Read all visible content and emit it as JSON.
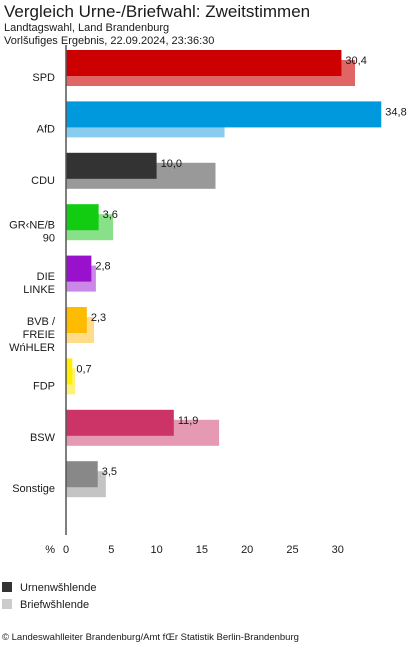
{
  "header": {
    "title": "Vergleich Urne-/Briefwahl: Zweitstimmen",
    "subtitle": "Landtagswahl, Land Brandenburg",
    "status": "Vorlšufiges Ergebnis, 22.09.2024, 23:36:30"
  },
  "chart_data": {
    "type": "bar",
    "orientation": "horizontal",
    "categories": [
      "SPD",
      "AfD",
      "CDU",
      "GR‹NE/B 90",
      "DIE LINKE",
      "BVB / FREIE WńHLER",
      "FDP",
      "BSW",
      "Sonstige"
    ],
    "series": [
      {
        "name": "Urnenwšhlende",
        "values": [
          30.4,
          34.8,
          10.0,
          3.6,
          2.8,
          2.3,
          0.7,
          11.9,
          3.5
        ]
      },
      {
        "name": "Briefwšhlende",
        "values": [
          31.9,
          17.5,
          16.5,
          5.2,
          3.3,
          3.1,
          1.0,
          16.9,
          4.4
        ]
      }
    ],
    "value_labels": [
      "30,4",
      "34,8",
      "10,0",
      "3,6",
      "2,8",
      "2,3",
      "0,7",
      "11,9",
      "3,5"
    ],
    "x_ticks": [
      0,
      5,
      10,
      15,
      20,
      25,
      30
    ],
    "x_unit_label": "%",
    "xlim": [
      0,
      35
    ],
    "grid": false,
    "legend_position": "bottom-left",
    "colors": {
      "urne": [
        "#cc0000",
        "#0099dd",
        "#333333",
        "#11cc11",
        "#9911cc",
        "#ffbb00",
        "#ffee00",
        "#cc3366",
        "#888888"
      ],
      "brief": [
        "#e06666",
        "#88ccee",
        "#999999",
        "#88e088",
        "#cc88e6",
        "#ffdd88",
        "#fff277",
        "#e699b2",
        "#c4c4c4"
      ]
    }
  },
  "legend": {
    "urne_label": "Urnenwšhlende",
    "urne_color": "#333333",
    "brief_label": "Briefwšhlende",
    "brief_color": "#cccccc"
  },
  "source": "© Landeswahlleiter Brandenburg/Amt fŒr Statistik Berlin-Brandenburg"
}
